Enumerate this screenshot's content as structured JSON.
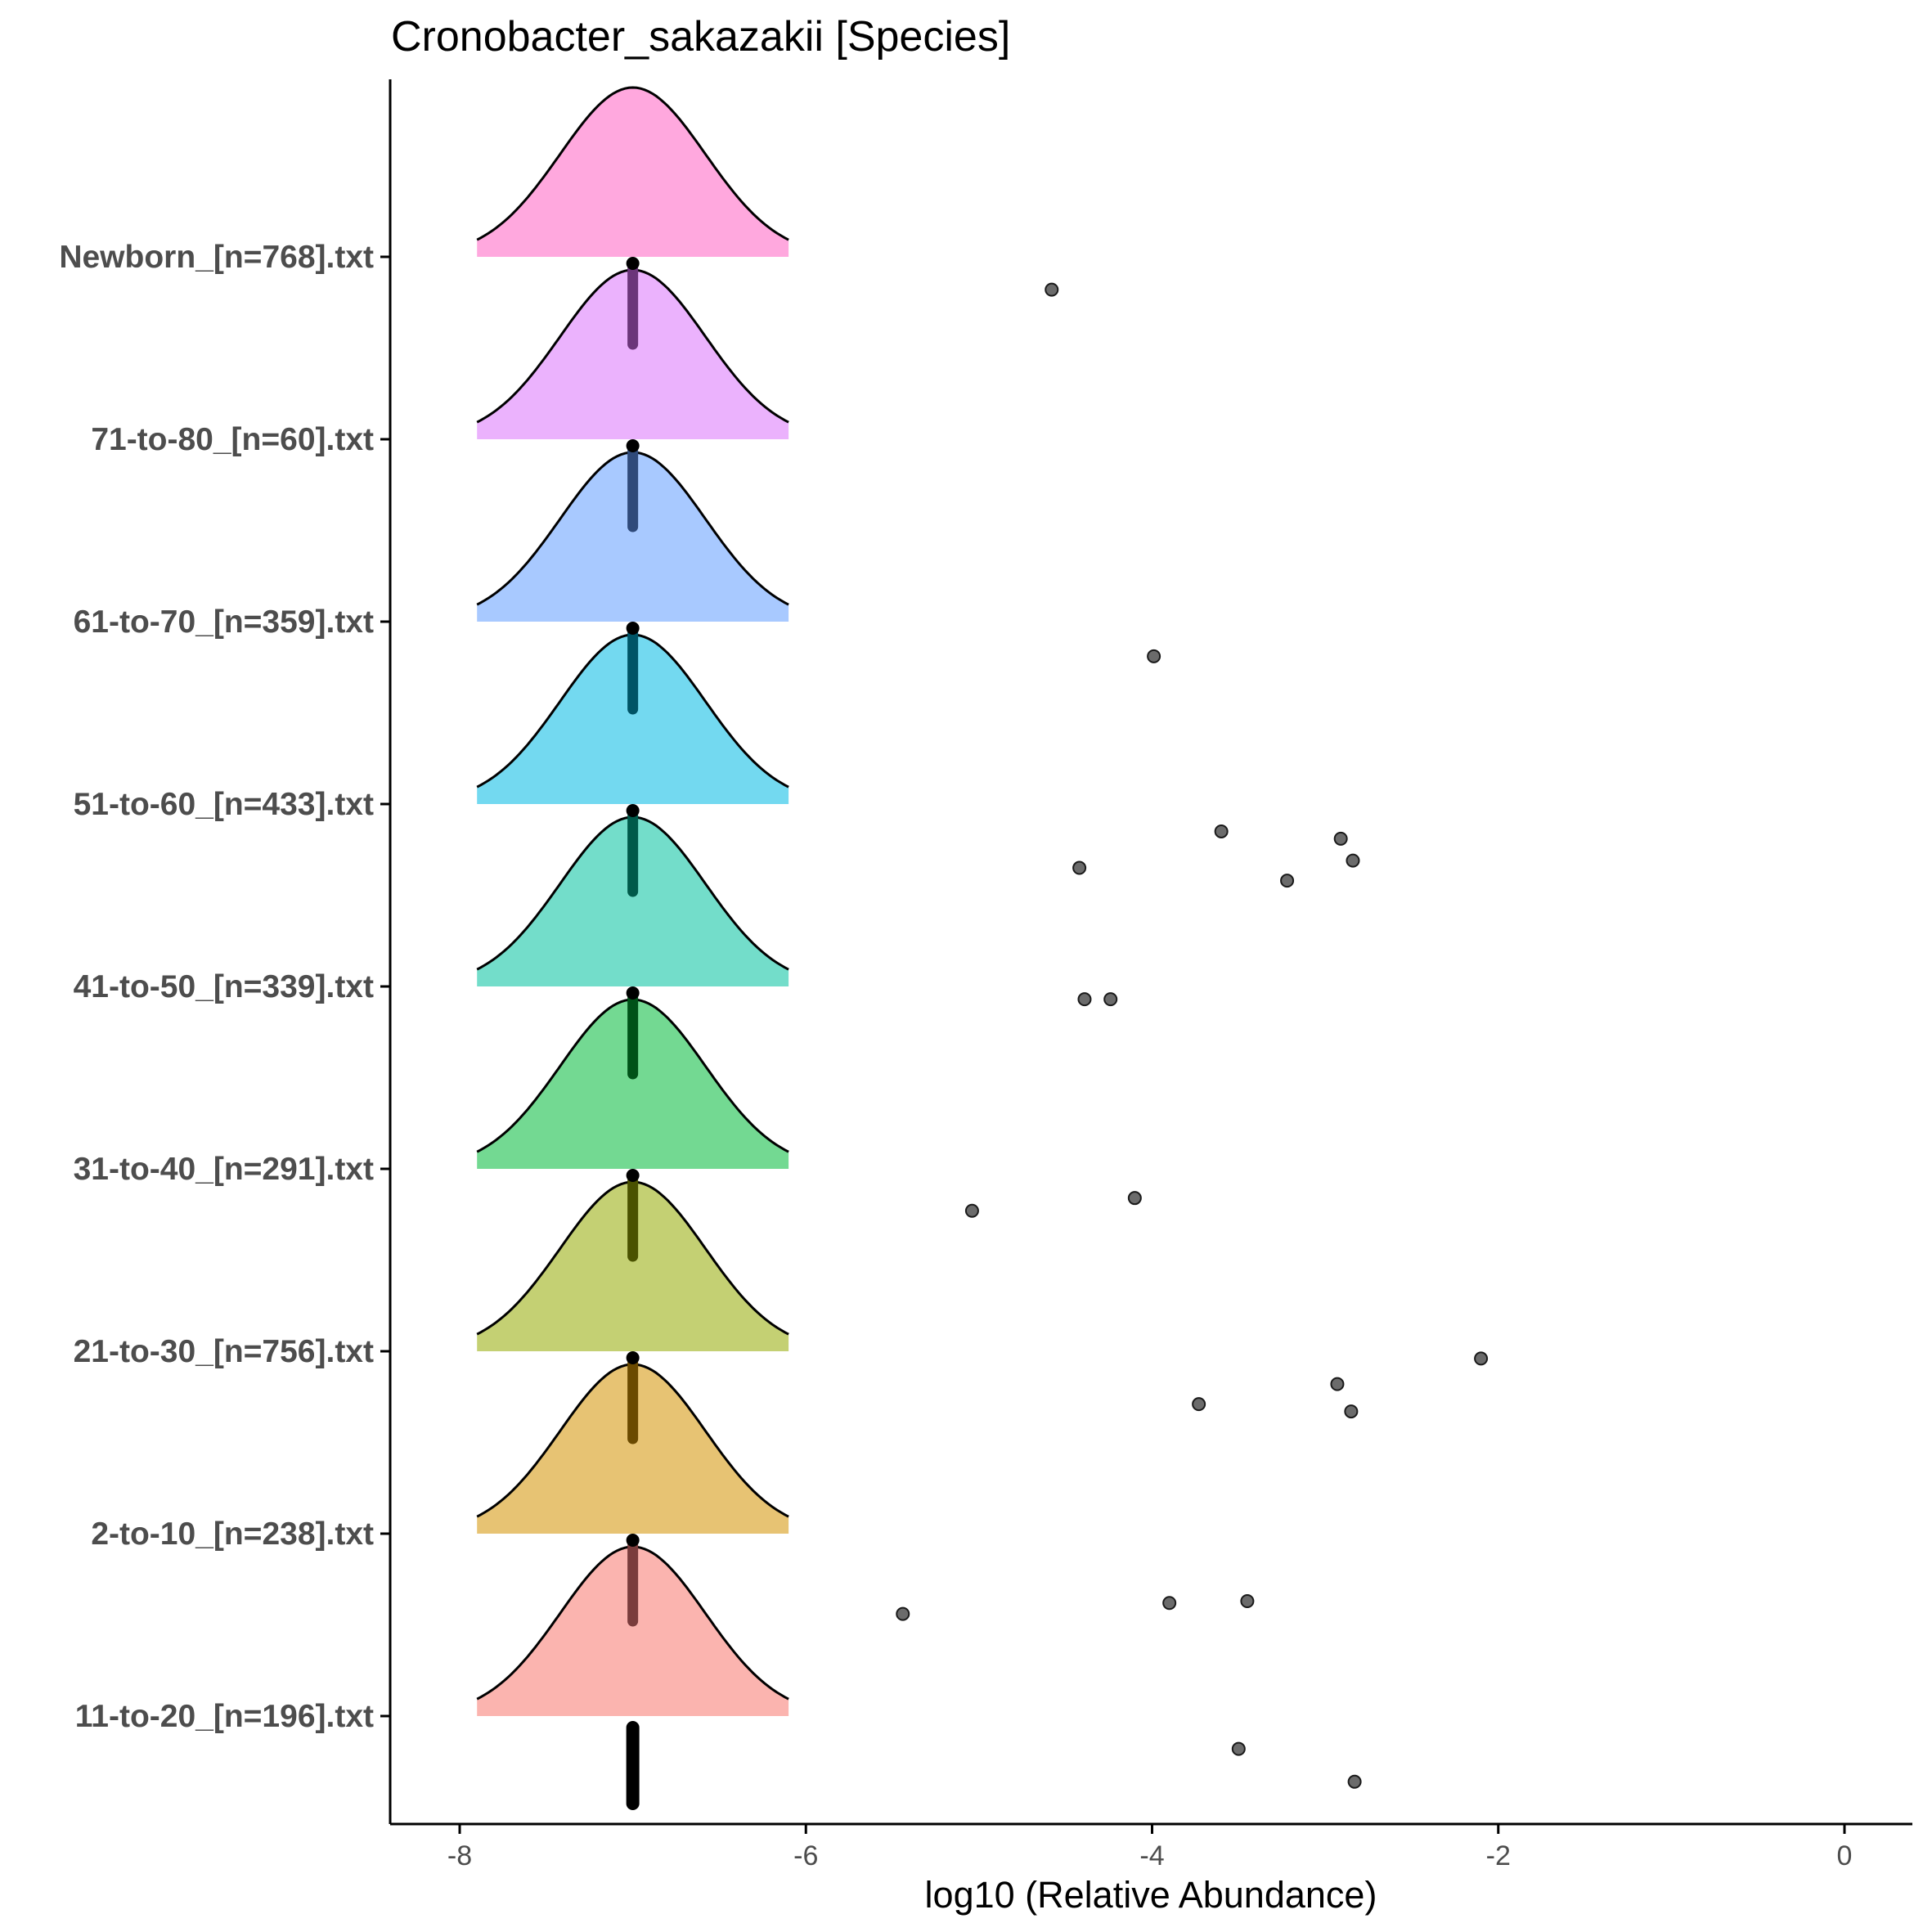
{
  "chart_data": {
    "type": "ridgeline",
    "title": "Cronobacter_sakazakii [Species]",
    "xlabel": "log10 (Relative Abundance)",
    "ylabel": "",
    "xlim": [
      -8.4,
      0.4
    ],
    "xticks": [
      -8,
      -6,
      -4,
      -2,
      0
    ],
    "xtick_labels": [
      "-8",
      "-6",
      "-4",
      "-2",
      "0"
    ],
    "grid": false,
    "legend": "none",
    "density_center": -7,
    "density_range": [
      -7.9,
      -6.1
    ],
    "categories": [
      "11-to-20_[n=196].txt",
      "2-to-10_[n=238].txt",
      "21-to-30_[n=756].txt",
      "31-to-40_[n=291].txt",
      "41-to-50_[n=339].txt",
      "51-to-60_[n=433].txt",
      "61-to-70_[n=359].txt",
      "71-to-80_[n=60].txt",
      "Newborn_[n=768].txt"
    ],
    "colors": [
      "#F8766D",
      "#D39200",
      "#93AA00",
      "#00BA38",
      "#00C19F",
      "#00B9E3",
      "#619CFF",
      "#DB72FB",
      "#FF61C3"
    ],
    "boxplots": [
      {
        "category": "11-to-20_[n=196].txt",
        "median": -7,
        "color": "#000000"
      },
      {
        "category": "2-to-10_[n=238].txt",
        "median": -7,
        "color": "#7a3c3c"
      },
      {
        "category": "21-to-30_[n=756].txt",
        "median": -7,
        "color": "#6b4a00"
      },
      {
        "category": "31-to-40_[n=291].txt",
        "median": -7,
        "color": "#4a5200"
      },
      {
        "category": "41-to-50_[n=339].txt",
        "median": -7,
        "color": "#005218"
      },
      {
        "category": "51-to-60_[n=433].txt",
        "median": -7,
        "color": "#005a4a"
      },
      {
        "category": "61-to-70_[n=359].txt",
        "median": -7,
        "color": "#005466"
      },
      {
        "category": "71-to-80_[n=60].txt",
        "median": -7,
        "color": "#2f4a7a"
      },
      {
        "category": "Newborn_[n=768].txt",
        "median": -7,
        "color": "#6b357a"
      }
    ],
    "outliers": [
      {
        "category": "11-to-20_[n=196].txt",
        "x": -3.5,
        "jitter": -0.18
      },
      {
        "category": "11-to-20_[n=196].txt",
        "x": -2.83,
        "jitter": -0.36
      },
      {
        "category": "2-to-10_[n=238].txt",
        "x": -5.44,
        "jitter": -0.44
      },
      {
        "category": "2-to-10_[n=238].txt",
        "x": -3.9,
        "jitter": -0.38
      },
      {
        "category": "2-to-10_[n=238].txt",
        "x": -3.45,
        "jitter": -0.37
      },
      {
        "category": "21-to-30_[n=756].txt",
        "x": -2.1,
        "jitter": -0.04
      },
      {
        "category": "21-to-30_[n=756].txt",
        "x": -2.93,
        "jitter": -0.18
      },
      {
        "category": "21-to-30_[n=756].txt",
        "x": -3.73,
        "jitter": -0.29
      },
      {
        "category": "21-to-30_[n=756].txt",
        "x": -2.85,
        "jitter": -0.33
      },
      {
        "category": "31-to-40_[n=291].txt",
        "x": -4.1,
        "jitter": -0.16
      },
      {
        "category": "31-to-40_[n=291].txt",
        "x": -5.04,
        "jitter": -0.23
      },
      {
        "category": "41-to-50_[n=339].txt",
        "x": -4.39,
        "jitter": -0.07
      },
      {
        "category": "41-to-50_[n=339].txt",
        "x": -4.24,
        "jitter": -0.07
      },
      {
        "category": "51-to-60_[n=433].txt",
        "x": -3.6,
        "jitter": -0.15
      },
      {
        "category": "51-to-60_[n=433].txt",
        "x": -2.91,
        "jitter": -0.19
      },
      {
        "category": "51-to-60_[n=433].txt",
        "x": -2.84,
        "jitter": -0.31
      },
      {
        "category": "51-to-60_[n=433].txt",
        "x": -4.42,
        "jitter": -0.35
      },
      {
        "category": "51-to-60_[n=433].txt",
        "x": -3.22,
        "jitter": -0.42
      },
      {
        "category": "61-to-70_[n=359].txt",
        "x": -3.99,
        "jitter": -0.19
      },
      {
        "category": "Newborn_[n=768].txt",
        "x": -4.58,
        "jitter": -0.18
      }
    ]
  }
}
